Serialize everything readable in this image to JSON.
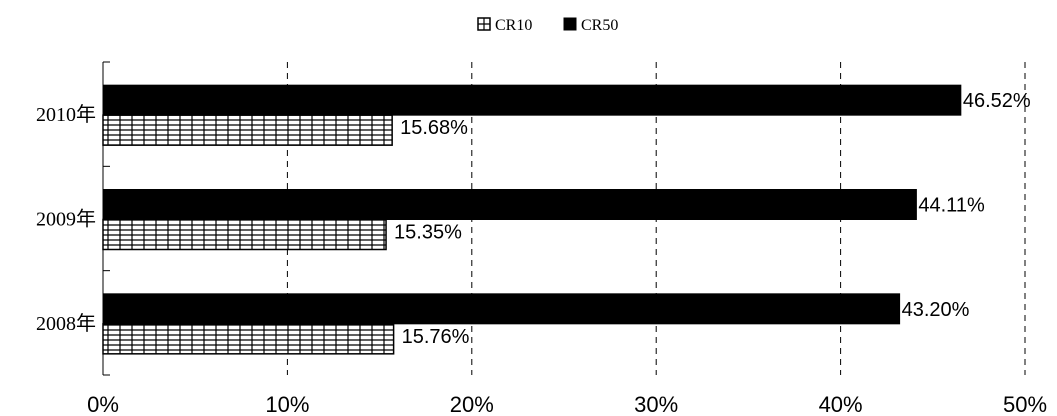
{
  "chart_data": {
    "type": "bar",
    "orientation": "horizontal",
    "categories": [
      "2008年",
      "2009年",
      "2010年"
    ],
    "series": [
      {
        "name": "CR10",
        "values": [
          15.76,
          15.35,
          15.68
        ],
        "labels": [
          "15.76%",
          "15.35%",
          "15.68%"
        ],
        "fill": "hatch-grid",
        "color": "#000000"
      },
      {
        "name": "CR50",
        "values": [
          43.2,
          44.11,
          46.52
        ],
        "labels": [
          "43.20%",
          "44.11%",
          "46.52%"
        ],
        "fill": "solid",
        "color": "#000000"
      }
    ],
    "xlim": [
      0,
      50
    ],
    "xticks": [
      0,
      10,
      20,
      30,
      40,
      50
    ],
    "xtick_labels": [
      "0%",
      "10%",
      "20%",
      "30%",
      "40%",
      "50%"
    ],
    "grid": "vertical-dashed",
    "legend": "top-center",
    "title": "",
    "xlabel": "",
    "ylabel": ""
  }
}
